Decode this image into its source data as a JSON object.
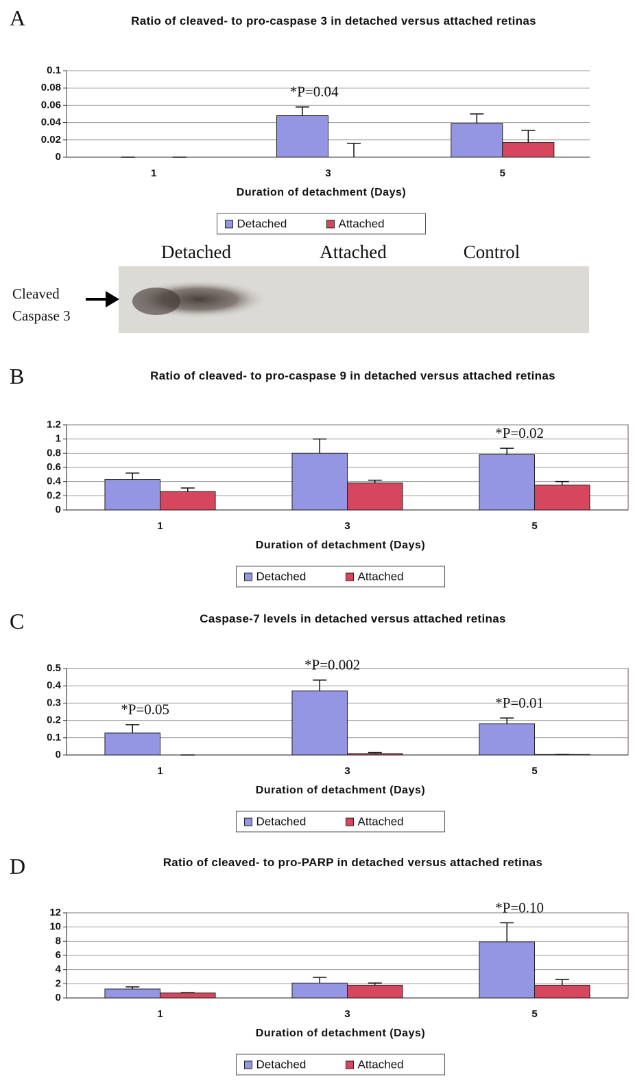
{
  "panels": [
    "A",
    "B",
    "C",
    "D"
  ],
  "blot": {
    "lanes": [
      "Detached",
      "Attached",
      "Control"
    ],
    "band_label": "Cleaved Caspase 3"
  },
  "chart_data": [
    {
      "type": "bar",
      "title": "Ratio of cleaved- to pro-caspase 3 in detached versus attached retinas",
      "x_label": "Duration of detachment (Days)",
      "categories": [
        "1",
        "3",
        "5"
      ],
      "series": [
        {
          "name": "Detached",
          "color": "#9496e4",
          "values": [
            0,
            0.048,
            0.039
          ],
          "errors": [
            0,
            0.01,
            0.011
          ]
        },
        {
          "name": "Attached",
          "color": "#d6475d",
          "values": [
            0,
            0,
            0.017
          ],
          "errors": [
            0,
            0.016,
            0.014
          ]
        }
      ],
      "ylim": [
        0,
        0.1
      ],
      "yticks": [
        0,
        0.02,
        0.04,
        0.06,
        0.08,
        0.1
      ],
      "grid": true,
      "frame": false,
      "annotations": [
        {
          "text": "*P=0.04",
          "x": "3"
        }
      ]
    },
    {
      "type": "bar",
      "title": "Ratio of cleaved- to pro-caspase 9 in detached versus attached retinas",
      "x_label": "Duration of detachment (Days)",
      "categories": [
        "1",
        "3",
        "5"
      ],
      "series": [
        {
          "name": "Detached",
          "color": "#9496e4",
          "values": [
            0.43,
            0.8,
            0.78
          ],
          "errors": [
            0.09,
            0.2,
            0.09
          ]
        },
        {
          "name": "Attached",
          "color": "#d6475d",
          "values": [
            0.26,
            0.38,
            0.35
          ],
          "errors": [
            0.05,
            0.04,
            0.05
          ]
        }
      ],
      "ylim": [
        0,
        1.2
      ],
      "yticks": [
        0,
        0.2,
        0.4,
        0.6,
        0.8,
        1,
        1.2
      ],
      "grid": true,
      "frame": true,
      "annotations": [
        {
          "text": "*P=0.02",
          "x": "5"
        }
      ]
    },
    {
      "type": "bar",
      "title": "Caspase-7 levels in detached versus attached retinas",
      "x_label": "Duration of detachment (Days)",
      "categories": [
        "1",
        "3",
        "5"
      ],
      "series": [
        {
          "name": "Detached",
          "color": "#9496e4",
          "values": [
            0.127,
            0.37,
            0.18
          ],
          "errors": [
            0.048,
            0.063,
            0.034
          ]
        },
        {
          "name": "Attached",
          "color": "#d6475d",
          "values": [
            0,
            0.008,
            0.003
          ],
          "errors": [
            0,
            0.006,
            0
          ]
        }
      ],
      "ylim": [
        0,
        0.5
      ],
      "yticks": [
        0,
        0.1,
        0.2,
        0.3,
        0.4,
        0.5
      ],
      "grid": true,
      "frame": true,
      "annotations": [
        {
          "text": "*P=0.05",
          "x": "1"
        },
        {
          "text": "*P=0.002",
          "x": "3"
        },
        {
          "text": "*P=0.01",
          "x": "5"
        }
      ]
    },
    {
      "type": "bar",
      "title": "Ratio of cleaved- to pro-PARP in detached versus attached retinas",
      "x_label": "Duration of detachment (Days)",
      "categories": [
        "1",
        "3",
        "5"
      ],
      "series": [
        {
          "name": "Detached",
          "color": "#9496e4",
          "values": [
            1.26,
            2.1,
            7.9
          ],
          "errors": [
            0.3,
            0.8,
            2.7
          ]
        },
        {
          "name": "Attached",
          "color": "#d6475d",
          "values": [
            0.7,
            1.8,
            1.8
          ],
          "errors": [
            0.05,
            0.3,
            0.8
          ]
        }
      ],
      "ylim": [
        0,
        12
      ],
      "yticks": [
        0,
        2,
        4,
        6,
        8,
        10,
        12
      ],
      "grid": true,
      "frame": true,
      "annotations": [
        {
          "text": "*P=0.10",
          "x": "5"
        }
      ]
    }
  ]
}
